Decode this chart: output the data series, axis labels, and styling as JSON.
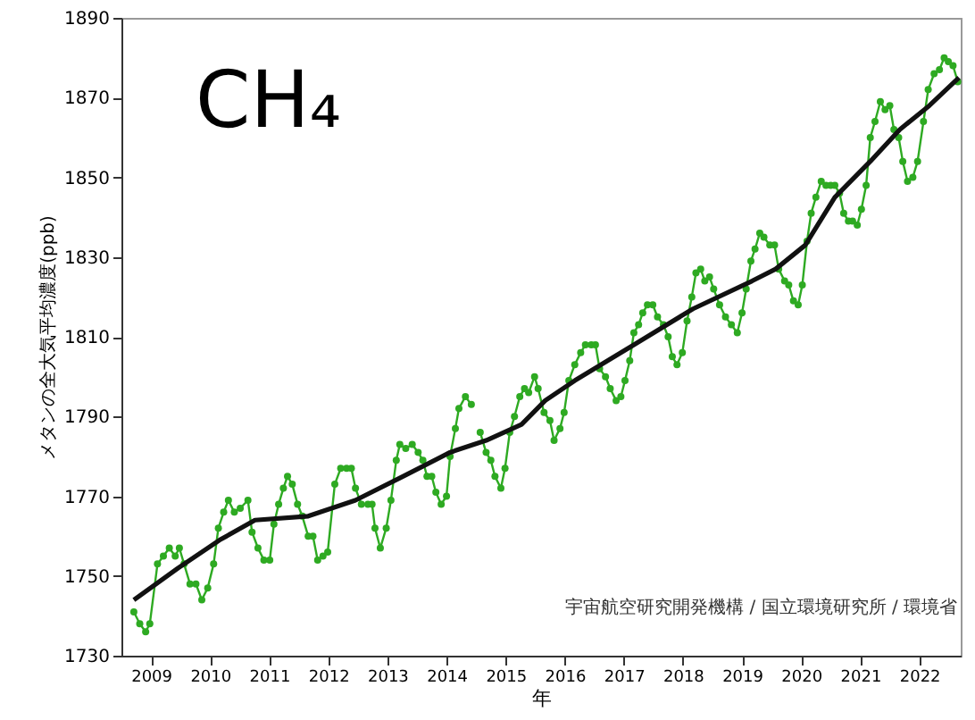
{
  "chart_data": {
    "type": "line",
    "title": "CH₄",
    "xlabel": "年",
    "ylabel": "メタンの全大気平均濃度(ppb)",
    "annotations": [
      "宇宙航空研究開発機構 / 国立環境研究所 / 環境省"
    ],
    "xlim": [
      2009,
      2023.2
    ],
    "xticks": [
      {
        "value": 2009.5,
        "label": "2009"
      },
      {
        "value": 2010.5,
        "label": "2010"
      },
      {
        "value": 2011.5,
        "label": "2011"
      },
      {
        "value": 2012.5,
        "label": "2012"
      },
      {
        "value": 2013.5,
        "label": "2013"
      },
      {
        "value": 2014.5,
        "label": "2014"
      },
      {
        "value": 2015.5,
        "label": "2015"
      },
      {
        "value": 2016.5,
        "label": "2016"
      },
      {
        "value": 2017.5,
        "label": "2017"
      },
      {
        "value": 2018.5,
        "label": "2018"
      },
      {
        "value": 2019.5,
        "label": "2019"
      },
      {
        "value": 2020.5,
        "label": "2020"
      },
      {
        "value": 2021.5,
        "label": "2021"
      },
      {
        "value": 2022.5,
        "label": "2022"
      }
    ],
    "ylim": [
      1730,
      1890
    ],
    "yticks": [
      1730,
      1750,
      1770,
      1790,
      1810,
      1830,
      1850,
      1870,
      1890
    ],
    "grid": false,
    "marker": "circle",
    "line_style": "solid",
    "series": [
      {
        "color": "#2eaa22",
        "x": [
          2009.21,
          2009.31,
          2009.41,
          2009.48,
          2009.61,
          2009.71,
          2009.81,
          2009.91,
          2009.98,
          2010.06,
          2010.16,
          2010.26,
          2010.36,
          2010.46,
          2010.56,
          2010.64,
          2010.73,
          2010.81,
          2010.91,
          2011.01,
          2011.14,
          2011.21,
          2011.31,
          2011.41,
          2011.51,
          2011.58,
          2011.66,
          2011.74,
          2011.81,
          2011.89,
          2011.98,
          2012.06,
          2012.16,
          2012.24,
          2012.32,
          2012.41,
          2012.49,
          2012.61,
          2012.71,
          2012.81,
          2012.89,
          2012.96,
          2013.06,
          2013.17,
          2013.24,
          2013.29,
          2013.38,
          2013.48,
          2013.56,
          2013.65,
          2013.71,
          2013.81,
          2013.92,
          2014.02,
          2014.1,
          2014.17,
          2014.25,
          2014.32,
          2014.41,
          2014.5,
          2014.56,
          2014.65,
          2014.71,
          2014.82,
          2014.92,
          2015.0,
          2015.07,
          2015.17,
          2015.25,
          2015.32,
          2015.42,
          2015.49,
          2015.57,
          2015.65,
          2015.74,
          2015.82,
          2015.89,
          2015.99,
          2016.05,
          2016.15,
          2016.25,
          2016.32,
          2016.42,
          2016.49,
          2016.57,
          2016.67,
          2016.77,
          2016.85,
          2016.95,
          2017.02,
          2017.09,
          2017.19,
          2017.27,
          2017.37,
          2017.45,
          2017.52,
          2017.6,
          2017.67,
          2017.75,
          2017.82,
          2017.9,
          2017.99,
          2018.07,
          2018.17,
          2018.25,
          2018.32,
          2018.4,
          2018.49,
          2018.57,
          2018.65,
          2018.72,
          2018.8,
          2018.87,
          2018.95,
          2019.02,
          2019.12,
          2019.22,
          2019.32,
          2019.42,
          2019.5,
          2019.57,
          2019.65,
          2019.72,
          2019.8,
          2019.87,
          2019.97,
          2020.05,
          2020.12,
          2020.22,
          2020.29,
          2020.37,
          2020.45,
          2020.52,
          2020.6,
          2020.67,
          2020.75,
          2020.84,
          2020.92,
          2021.0,
          2021.07,
          2021.15,
          2021.22,
          2021.3,
          2021.37,
          2021.45,
          2021.52,
          2021.6,
          2021.67,
          2021.75,
          2021.84,
          2021.92,
          2022.0,
          2022.07,
          2022.15,
          2022.22,
          2022.3,
          2022.39,
          2022.47,
          2022.57,
          2022.65,
          2022.75,
          2022.84,
          2022.92,
          2022.99,
          2023.07,
          2023.15
        ],
        "values": [
          1741,
          1738,
          1736,
          1738,
          1753,
          1755,
          1757,
          1755,
          1757,
          1753,
          1748,
          1748,
          1744,
          1747,
          1753,
          1762,
          1766,
          1769,
          1766,
          1767,
          1769,
          1761,
          1757,
          1754,
          1754,
          1763,
          1768,
          1772,
          1775,
          1773,
          1768,
          1765,
          1760,
          1760,
          1754,
          1755,
          1756,
          1773,
          1777,
          1777,
          1777,
          1772,
          1768,
          1768,
          1768,
          1762,
          1757,
          1762,
          1769,
          1779,
          1783,
          1782,
          1783,
          1781,
          1779,
          1775,
          1775,
          1771,
          1768,
          1770,
          1780,
          1787,
          1792,
          1795,
          1793,
          null,
          1786,
          1781,
          1779,
          1775,
          1772,
          1777,
          1786,
          1790,
          1795,
          1797,
          1796,
          1800,
          1797,
          1791,
          1789,
          1784,
          1787,
          1791,
          1799,
          1803,
          1806,
          1808,
          1808,
          1808,
          1802,
          1800,
          1797,
          1794,
          1795,
          1799,
          1804,
          1811,
          1813,
          1816,
          1818,
          1818,
          1815,
          1813,
          1810,
          1805,
          1803,
          1806,
          1814,
          1820,
          1826,
          1827,
          1824,
          1825,
          1822,
          1818,
          1815,
          1813,
          1811,
          1816,
          1822,
          1829,
          1832,
          1836,
          1835,
          1833,
          1833,
          1827,
          1824,
          1823,
          1819,
          1818,
          1823,
          1834,
          1841,
          1845,
          1849,
          1848,
          1848,
          1848,
          1846,
          1841,
          1839,
          1839,
          1838,
          1842,
          1848,
          1860,
          1864,
          1869,
          1867,
          1868,
          1862,
          1860,
          1854,
          1849,
          1850,
          1854,
          1864,
          1872,
          1876,
          1877,
          1880,
          1879,
          1878,
          1874
        ]
      },
      {
        "color": "#111111",
        "marker": "none",
        "x": [
          2009.21,
          2009.96,
          2010.66,
          2011.26,
          2012.16,
          2012.96,
          2013.77,
          2014.56,
          2015.17,
          2015.77,
          2016.17,
          2016.67,
          2017.67,
          2018.67,
          2019.67,
          2020.07,
          2020.57,
          2021.07,
          2021.67,
          2022.17,
          2022.67,
          2023.17
        ],
        "values": [
          1744,
          1752,
          1759,
          1764,
          1765,
          1769,
          1775,
          1781,
          1784,
          1788,
          1794,
          1799,
          1808,
          1817,
          1824,
          1827,
          1833,
          1845,
          1854,
          1862,
          1868,
          1875
        ]
      }
    ]
  }
}
